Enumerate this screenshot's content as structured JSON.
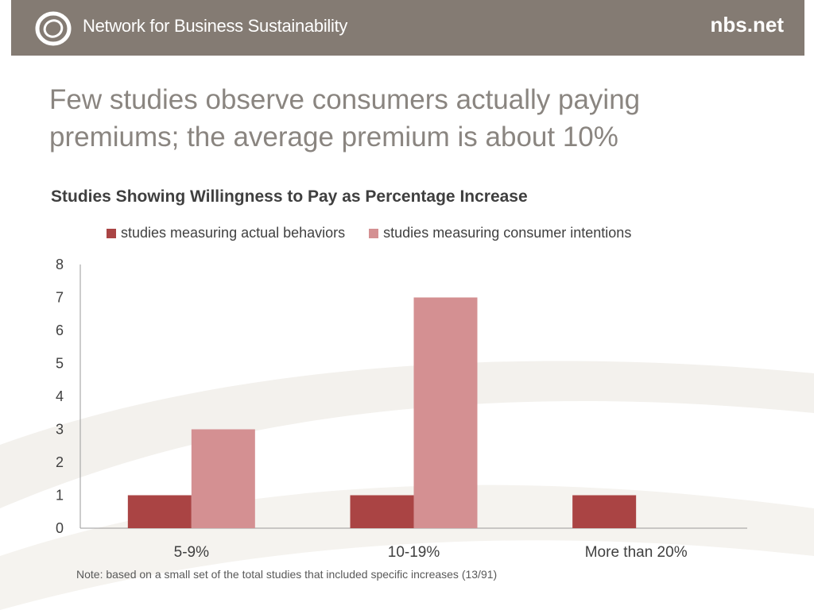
{
  "header": {
    "org_name": "Network for Business Sustainability",
    "site_url": "nbs.net",
    "background_color": "#847b73"
  },
  "slide": {
    "title": "Few studies observe consumers actually paying premiums; the average premium is about 10%",
    "note": "Note: based on a small set of the total studies that included specific increases (13/91)"
  },
  "chart_data": {
    "type": "bar",
    "title": "Studies Showing Willingness to Pay as Percentage Increase",
    "categories": [
      "5-9%",
      "10-19%",
      "More than 20%"
    ],
    "series": [
      {
        "name": "studies measuring actual behaviors",
        "values": [
          1,
          1,
          1
        ],
        "color": "#aa4444"
      },
      {
        "name": "studies measuring consumer intentions",
        "values": [
          3,
          7,
          0
        ],
        "color": "#d49092"
      }
    ],
    "ylim": [
      0,
      8
    ],
    "yticks": [
      "0",
      "1",
      "2",
      "3",
      "4",
      "5",
      "6",
      "7",
      "8"
    ],
    "xlabel": "",
    "ylabel": "",
    "grid": false,
    "legend_position": "top"
  }
}
